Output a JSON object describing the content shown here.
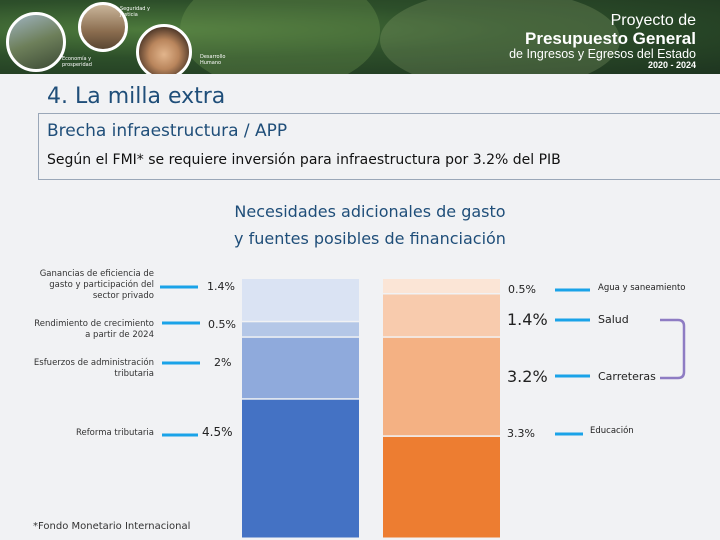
{
  "header": {
    "brand_line1": "Proyecto de",
    "brand_line2": "Presupuesto General",
    "brand_line3": "de Ingresos y Egresos del Estado",
    "brand_years": "2020 - 2024",
    "photo_labels": [
      "Seguridad y Justicia",
      "Economía y prosperidad",
      "Desarrollo Humano"
    ]
  },
  "section_title": "4. La milla extra",
  "subtitle": "Brecha infraestructura / APP",
  "statement": "Según el FMI* se requiere inversión para infraestructura por 3.2% del PIB",
  "footnote": "*Fondo Monetario Internacional",
  "colors": {
    "title_blue": "#1f4e79",
    "connector_blue": "#1aa3e8",
    "bracket_purple": "#8e7cc3"
  },
  "chart_data": {
    "type": "bar",
    "stacked": true,
    "title": "Necesidades adicionales de gasto\ny fuentes posibles de financiación",
    "title_lines": [
      "Necesidades adicionales de gasto",
      "y fuentes posibles de financiación"
    ],
    "bars": [
      {
        "segments": [
          {
            "label": "Reforma tributaria",
            "value": 4.5,
            "value_label": "4.5%",
            "color": "#4472c4"
          },
          {
            "label": "Esfuerzos de administración tributaria",
            "value": 2,
            "value_label": "2%",
            "color": "#8faadc"
          },
          {
            "label": "Rendimiento de crecimiento a partir de 2024",
            "value": 0.5,
            "value_label": "0.5%",
            "color": "#b4c7e7"
          },
          {
            "label": "Ganancias de eficiencia de gasto y participación del sector privado",
            "value": 1.4,
            "value_label": "1.4%",
            "color": "#dae3f3"
          }
        ]
      },
      {
        "segments": [
          {
            "label": "Educación",
            "value": 3.3,
            "value_label": "3.3%",
            "color": "#ed7d31"
          },
          {
            "label": "Carreteras",
            "value": 3.2,
            "value_label": "3.2%",
            "color": "#f4b183"
          },
          {
            "label": "Salud",
            "value": 1.4,
            "value_label": "1.4%",
            "color": "#f8cbad"
          },
          {
            "label": "Agua y saneamiento",
            "value": 0.5,
            "value_label": "0.5%",
            "color": "#fbe5d6"
          }
        ]
      }
    ],
    "ylim": [
      0,
      8.4
    ],
    "grid": false,
    "legend": "none"
  }
}
